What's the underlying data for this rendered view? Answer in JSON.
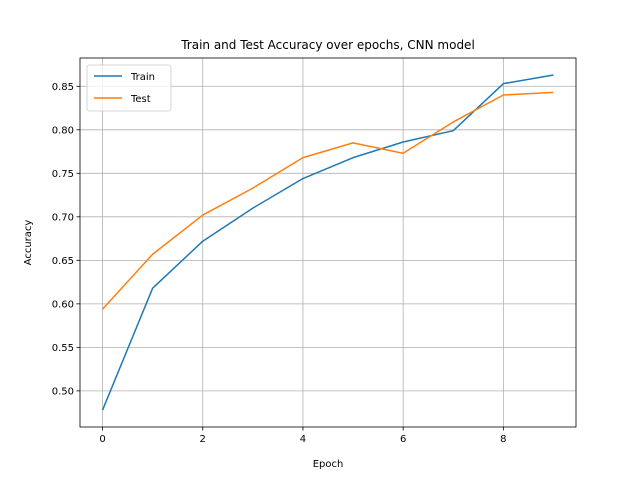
{
  "chart_data": {
    "type": "line",
    "title": "Train and Test Accuracy over epochs, CNN model",
    "xlabel": "Epoch",
    "ylabel": "Accuracy",
    "x": [
      0,
      1,
      2,
      3,
      4,
      5,
      6,
      7,
      8,
      9
    ],
    "xlim": [
      -0.45,
      9.45
    ],
    "ylim": [
      0.4585,
      0.8825
    ],
    "xticks": [
      0,
      2,
      4,
      6,
      8
    ],
    "yticks": [
      0.5,
      0.55,
      0.6,
      0.65,
      0.7,
      0.75,
      0.8,
      0.85
    ],
    "xtick_labels": [
      "0",
      "2",
      "4",
      "6",
      "8"
    ],
    "ytick_labels": [
      "0.50",
      "0.55",
      "0.60",
      "0.65",
      "0.70",
      "0.75",
      "0.80",
      "0.85"
    ],
    "grid": true,
    "legend_position": "top-left",
    "series": [
      {
        "name": "Train",
        "color": "#1f77b4",
        "values": [
          0.478,
          0.618,
          0.672,
          0.71,
          0.744,
          0.768,
          0.786,
          0.799,
          0.853,
          0.863
        ]
      },
      {
        "name": "Test",
        "color": "#ff7f0e",
        "values": [
          0.594,
          0.657,
          0.702,
          0.733,
          0.768,
          0.785,
          0.773,
          0.809,
          0.84,
          0.843
        ]
      }
    ]
  }
}
